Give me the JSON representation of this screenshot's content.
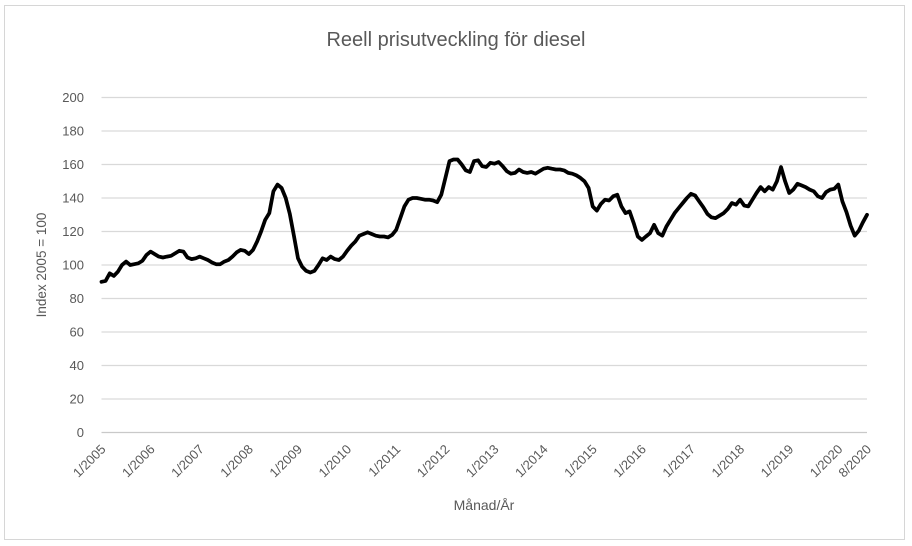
{
  "chart_data": {
    "type": "line",
    "title": "Reell prisutveckling för diesel",
    "xlabel": "Månad/År",
    "ylabel": "Index 2005 = 100",
    "frequency": "monthly",
    "start_month": "1/2005",
    "end_month": "8/2020",
    "ylim": [
      0,
      200
    ],
    "y_ticks": [
      0,
      20,
      40,
      60,
      80,
      100,
      120,
      140,
      160,
      180,
      200
    ],
    "x_ticks": [
      {
        "label": "1/2005",
        "month_index": 0
      },
      {
        "label": "1/2006",
        "month_index": 12
      },
      {
        "label": "1/2007",
        "month_index": 24
      },
      {
        "label": "1/2008",
        "month_index": 36
      },
      {
        "label": "1/2009",
        "month_index": 48
      },
      {
        "label": "1/2010",
        "month_index": 60
      },
      {
        "label": "1/2011",
        "month_index": 72
      },
      {
        "label": "1/2012",
        "month_index": 84
      },
      {
        "label": "1/2013",
        "month_index": 96
      },
      {
        "label": "1/2014",
        "month_index": 108
      },
      {
        "label": "1/2015",
        "month_index": 120
      },
      {
        "label": "1/2016",
        "month_index": 132
      },
      {
        "label": "1/2017",
        "month_index": 144
      },
      {
        "label": "1/2018",
        "month_index": 156
      },
      {
        "label": "1/2019",
        "month_index": 168
      },
      {
        "label": "1/2020",
        "month_index": 180
      },
      {
        "label": "8/2020",
        "month_index": 187
      }
    ],
    "grid": true,
    "legend": false,
    "colors": {
      "line": "#000000",
      "gridline": "#d9d9d9",
      "axis_line": "#c9c9c9",
      "text": "#595959"
    },
    "series": [
      {
        "name": "Reell prisutveckling för diesel",
        "values": [
          90,
          90.5,
          95,
          93.5,
          96,
          100,
          102,
          100,
          100.5,
          101,
          102.5,
          106,
          108,
          106.5,
          105,
          104.5,
          105,
          105.5,
          107,
          108.5,
          108,
          104.5,
          103.5,
          104,
          105,
          104,
          103,
          101.5,
          100.5,
          100.5,
          102,
          103,
          105,
          107.5,
          109,
          108.5,
          106.5,
          109,
          114,
          120,
          127,
          131,
          144,
          148,
          146,
          140,
          130.5,
          117.5,
          104,
          99,
          96.5,
          95.5,
          96.5,
          100,
          104,
          103,
          105,
          103.5,
          103,
          105,
          108.5,
          111.5,
          114,
          117.5,
          118.5,
          119.5,
          118.5,
          117.5,
          117,
          117,
          116.5,
          118,
          121,
          128,
          135,
          139,
          140,
          140,
          139.5,
          139,
          139,
          138.5,
          137.5,
          142,
          152,
          162,
          163,
          163,
          160,
          156.5,
          155.5,
          162,
          162.5,
          159,
          158.5,
          161,
          160.5,
          161.5,
          159,
          156,
          154.5,
          155,
          157,
          155.5,
          155,
          155.5,
          154.5,
          156,
          157.5,
          158,
          157.5,
          157,
          157,
          156.5,
          155,
          154.5,
          153.5,
          152,
          150,
          146,
          135,
          132.5,
          136.5,
          139,
          138.5,
          141,
          142,
          135,
          131,
          132,
          125,
          117,
          115,
          117,
          119,
          124,
          119,
          117.5,
          123,
          127,
          131,
          134,
          137,
          140,
          142.5,
          141.5,
          138,
          134.5,
          130.5,
          128.5,
          128,
          129.5,
          131,
          133.5,
          137,
          136,
          139,
          135.5,
          135,
          139,
          143,
          146.5,
          144,
          146.5,
          145,
          150,
          158.5,
          150,
          143,
          145,
          148.5,
          147.5,
          146.5,
          145,
          144,
          141,
          140,
          143.5,
          145,
          145.5,
          148,
          138,
          131.5,
          123.5,
          117.5,
          120.5,
          125.5,
          130
        ]
      }
    ]
  }
}
